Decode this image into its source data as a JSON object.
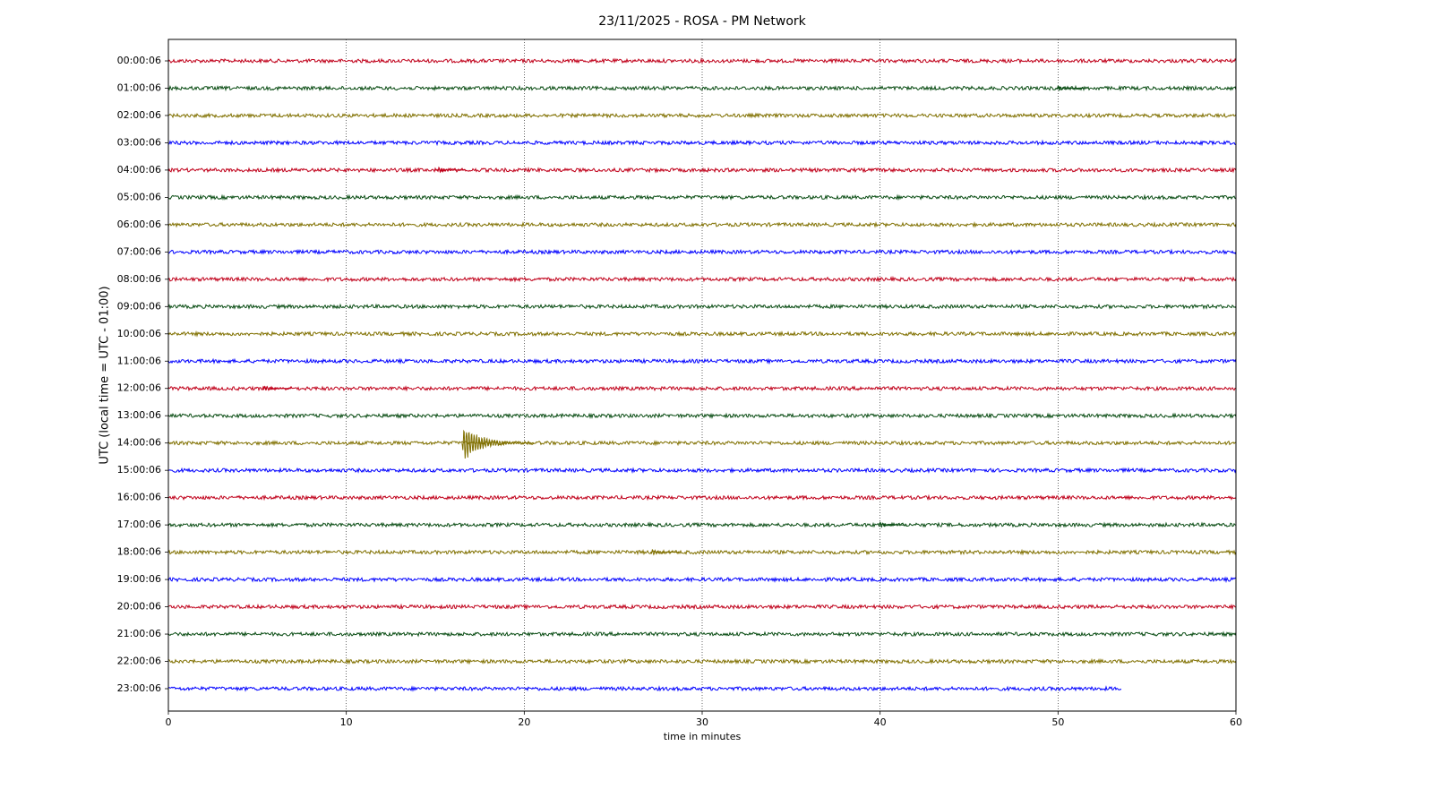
{
  "chart_data": {
    "type": "helicorder",
    "title": "23/11/2025 - ROSA - PM Network",
    "xlabel": "time in minutes",
    "ylabel": "UTC (local time = UTC - 01:00)",
    "categories": [
      "00:00:06",
      "01:00:06",
      "02:00:06",
      "03:00:06",
      "04:00:06",
      "05:00:06",
      "06:00:06",
      "07:00:06",
      "08:00:06",
      "09:00:06",
      "10:00:06",
      "11:00:06",
      "12:00:06",
      "13:00:06",
      "14:00:06",
      "15:00:06",
      "16:00:06",
      "17:00:06",
      "18:00:06",
      "19:00:06",
      "20:00:06",
      "21:00:06",
      "22:00:06",
      "23:00:06"
    ],
    "colors": [
      "#c0001a",
      "#0a4d14",
      "#807000",
      "#0000ff"
    ],
    "xlim": [
      0,
      60
    ],
    "xticks": [
      0,
      10,
      20,
      30,
      40,
      50,
      60
    ],
    "grid": "x",
    "trace_end": [
      60,
      60,
      60,
      60,
      60,
      60,
      60,
      60,
      60,
      60,
      60,
      60,
      60,
      60,
      60,
      60,
      60,
      60,
      60,
      60,
      60,
      60,
      60,
      53.6
    ],
    "events": [
      {
        "row": 14,
        "x": 16.5,
        "amplitude": 1.5
      },
      {
        "row": 4,
        "x": 15.1,
        "amplitude": 0.3
      },
      {
        "row": 12,
        "x": 5.3,
        "amplitude": 0.3
      },
      {
        "row": 1,
        "x": 49.9,
        "amplitude": 0.25
      },
      {
        "row": 17,
        "x": 39.9,
        "amplitude": 0.3
      },
      {
        "row": 18,
        "x": 27.1,
        "amplitude": 0.3
      }
    ]
  }
}
